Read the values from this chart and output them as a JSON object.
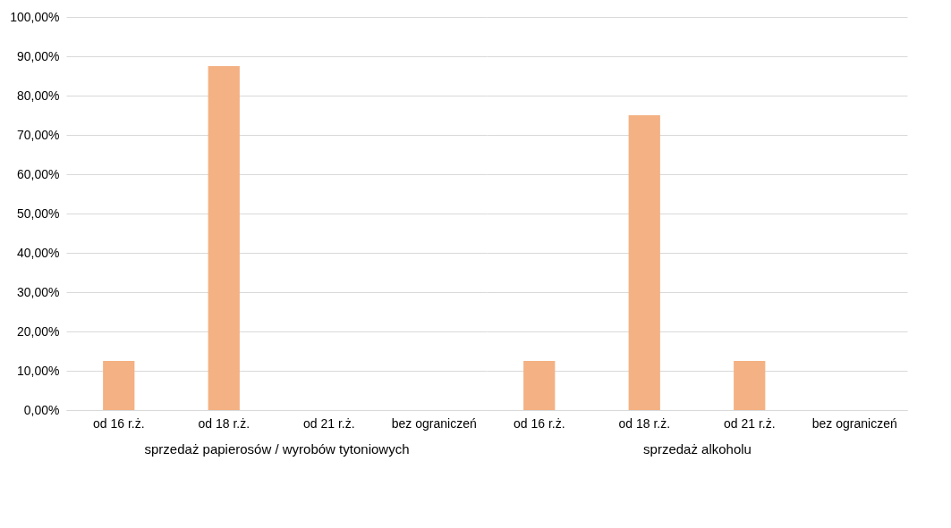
{
  "chart_data": [
    {
      "type": "bar",
      "xlabel": "sprzedaż papierosów / wyrobów tytoniowych",
      "categories": [
        "od 16 r.ż.",
        "od 18 r.ż.",
        "od 21 r.ż.",
        "bez ograniczeń"
      ],
      "values": [
        12.5,
        87.5,
        0,
        0
      ],
      "color": "#f4b183",
      "ylim": [
        0,
        100
      ],
      "yticks": [
        {
          "value": 0,
          "label": "0,00%"
        },
        {
          "value": 10,
          "label": "10,00%"
        },
        {
          "value": 20,
          "label": "20,00%"
        },
        {
          "value": 30,
          "label": "30,00%"
        },
        {
          "value": 40,
          "label": "40,00%"
        },
        {
          "value": 50,
          "label": "50,00%"
        },
        {
          "value": 60,
          "label": "60,00%"
        },
        {
          "value": 70,
          "label": "70,00%"
        },
        {
          "value": 80,
          "label": "80,00%"
        },
        {
          "value": 90,
          "label": "90,00%"
        },
        {
          "value": 100,
          "label": "100,00%"
        }
      ],
      "grid": "y"
    },
    {
      "type": "bar",
      "xlabel": "sprzedaż alkoholu",
      "categories": [
        "od 16 r.ż.",
        "od 18 r.ż.",
        "od 21 r.ż.",
        "bez ograniczeń"
      ],
      "values": [
        12.5,
        75,
        12.5,
        0
      ],
      "color": "#f4b183",
      "ylim": [
        0,
        100
      ],
      "yticks": [
        0,
        10,
        20,
        30,
        40,
        50,
        60,
        70,
        80,
        90,
        100
      ],
      "grid": "y",
      "tick_labels": "x"
    }
  ]
}
